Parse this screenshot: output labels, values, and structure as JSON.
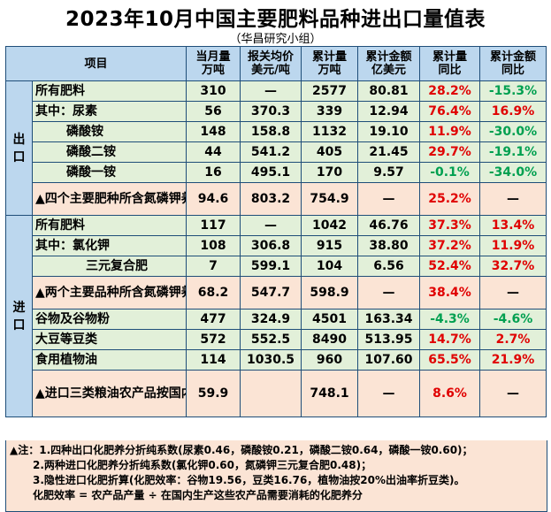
{
  "title": "2023年10月中国主要肥料品种进出口量值表",
  "subtitle": "（华昌研究小组）",
  "headers": [
    "项目",
    "当月量\n万吨",
    "报关均价\n美元/吨",
    "累计量\n万吨",
    "累计金额\n亿美元",
    "累计量\n同比",
    "累计金额\n同比"
  ],
  "export_label": "出口",
  "import_label": "进口",
  "export_rows": [
    {
      "label": "所有肥料",
      "v": [
        "310",
        "—",
        "2577",
        "80.81",
        "28.2%",
        "-15.3%"
      ]
    },
    {
      "label": "其中：尿素",
      "v": [
        "56",
        "370.3",
        "339",
        "12.94",
        "76.4%",
        "16.9%"
      ]
    },
    {
      "label": "磷酸铵",
      "v": [
        "148",
        "158.8",
        "1132",
        "19.10",
        "11.9%",
        "-30.0%"
      ]
    },
    {
      "label": "磷酸二铵",
      "v": [
        "44",
        "541.2",
        "405",
        "21.45",
        "29.7%",
        "-19.1%"
      ]
    },
    {
      "label": "磷酸一铵",
      "v": [
        "16",
        "495.1",
        "170",
        "9.57",
        "-0.1%",
        "-34.0%"
      ]
    },
    {
      "label": "▲四个主要肥种所含氮磷钾养分(折纯)",
      "v": [
        "94.6",
        "803.2",
        "754.9",
        "—",
        "25.2%",
        "—"
      ]
    }
  ],
  "import_rows": [
    {
      "label": "所有肥料",
      "v": [
        "117",
        "—",
        "1042",
        "46.76",
        "37.3%",
        "13.4%"
      ]
    },
    {
      "label": "其中：氯化钾",
      "v": [
        "108",
        "306.8",
        "915",
        "38.80",
        "37.2%",
        "11.9%"
      ]
    },
    {
      "label": "三元复合肥",
      "v": [
        "7",
        "599.1",
        "104",
        "6.56",
        "52.4%",
        "32.7%"
      ]
    },
    {
      "label": "▲两个主要品种所含氮磷钾养分(折纯)",
      "v": [
        "68.2",
        "547.7",
        "598.9",
        "—",
        "38.4%",
        "—"
      ]
    },
    {
      "label": "谷物及谷物粉",
      "v": [
        "477",
        "324.9",
        "4501",
        "163.34",
        "-4.3%",
        "-4.6%"
      ]
    },
    {
      "label": "大豆等豆类",
      "v": [
        "572",
        "552.5",
        "8490",
        "513.95",
        "14.7%",
        "2.7%"
      ]
    },
    {
      "label": "食用植物油",
      "v": [
        "114",
        "1030.5",
        "960",
        "107.60",
        "65.5%",
        "21.9%"
      ]
    },
    {
      "label": "▲进口三类粮油农产品按国内化肥效率折算隐性进口养分(折纯)",
      "v": [
        "59.9",
        "",
        "748.1",
        "—",
        "8.6%",
        "—"
      ]
    }
  ],
  "notes": [
    "▲注：1.四种出口化肥养分折纯系数(尿素0.46，磷酸铵0.21，磷酸二铵0.64，磷酸一铵0.60)；",
    "2.两种进口化肥养分折纯系数(氯化钾0.60，氮磷钾三元复合肥0.48)；",
    "3.隐性进口化肥折算(化肥效率：谷物19.56，豆类16.76，植物油按20%出油率折豆类)。",
    "化肥效率 = 农产品产量 ÷ 在国内生产这些农产品需要消耗的化肥养分"
  ],
  "colors": {
    "header_bg": "#bcd7ee",
    "green_row": "#e2f0d9",
    "orange_row": "#fbe4d5",
    "positive": "#e00000",
    "negative": "#00a050",
    "border": "#1f4e79"
  }
}
